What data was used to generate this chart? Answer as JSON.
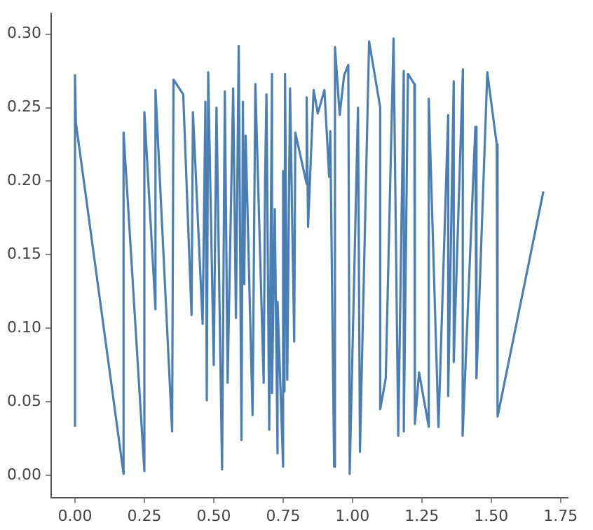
{
  "chart_data": {
    "type": "line",
    "xlim": [
      -0.086,
      1.776
    ],
    "ylim": [
      -0.015,
      0.314
    ],
    "xticks": [
      {
        "value": 0,
        "label": "0.00"
      },
      {
        "value": 0.25,
        "label": "0.25"
      },
      {
        "value": 0.5,
        "label": "0.50"
      },
      {
        "value": 0.75,
        "label": "0.75"
      },
      {
        "value": 1,
        "label": "1.00"
      },
      {
        "value": 1.25,
        "label": "1.25"
      },
      {
        "value": 1.5,
        "label": "1.50"
      },
      {
        "value": 1.75,
        "label": "1.75"
      }
    ],
    "yticks": [
      {
        "value": 0,
        "label": "0.00"
      },
      {
        "value": 0.05,
        "label": "0.05"
      },
      {
        "value": 0.1,
        "label": "0.10"
      },
      {
        "value": 0.15,
        "label": "0.15"
      },
      {
        "value": 0.2,
        "label": "0.20"
      },
      {
        "value": 0.25,
        "label": "0.25"
      },
      {
        "value": 0.3,
        "label": "0.30"
      }
    ],
    "grid": false,
    "legend": false,
    "marker": "none",
    "line_style": "solid",
    "series": [
      {
        "color": "#4a7fb5",
        "x": [
          0,
          0,
          0.003,
          0.175,
          0.175,
          0.25,
          0.25,
          0.29,
          0.29,
          0.35,
          0.355,
          0.39,
          0.42,
          0.425,
          0.46,
          0.47,
          0.475,
          0.48,
          0.5,
          0.51,
          0.53,
          0.54,
          0.55,
          0.57,
          0.58,
          0.59,
          0.6,
          0.605,
          0.61,
          0.615,
          0.64,
          0.65,
          0.68,
          0.685,
          0.69,
          0.7,
          0.71,
          0.71,
          0.72,
          0.73,
          0.73,
          0.75,
          0.75,
          0.755,
          0.757,
          0.765,
          0.775,
          0.79,
          0.794,
          0.835,
          0.835,
          0.84,
          0.86,
          0.875,
          0.899,
          0.916,
          0.92,
          0.934,
          0.937,
          0.954,
          0.97,
          0.985,
          0.99,
          1.02,
          1.027,
          1.06,
          1.1,
          1.1,
          1.12,
          1.148,
          1.165,
          1.185,
          1.185,
          1.2,
          1.223,
          1.225,
          1.24,
          1.275,
          1.275,
          1.31,
          1.345,
          1.345,
          1.365,
          1.365,
          1.398,
          1.397,
          1.443,
          1.447,
          1.486,
          1.52,
          1.523,
          1.688
        ],
        "values": [
          0.033,
          0.272,
          0.24,
          0.001,
          0.233,
          0.003,
          0.247,
          0.113,
          0.262,
          0.03,
          0.269,
          0.259,
          0.109,
          0.247,
          0.103,
          0.254,
          0.051,
          0.274,
          0.075,
          0.25,
          0.004,
          0.261,
          0.063,
          0.263,
          0.107,
          0.292,
          0.024,
          0.254,
          0.13,
          0.231,
          0.041,
          0.266,
          0.063,
          0.2,
          0.259,
          0.031,
          0.273,
          0.056,
          0.181,
          0.015,
          0.118,
          0.006,
          0.207,
          0.057,
          0.273,
          0.065,
          0.263,
          0.091,
          0.233,
          0.198,
          0.257,
          0.169,
          0.262,
          0.246,
          0.262,
          0.203,
          0.234,
          0.006,
          0.291,
          0.245,
          0.272,
          0.279,
          0.001,
          0.25,
          0.016,
          0.295,
          0.25,
          0.045,
          0.066,
          0.297,
          0.027,
          0.275,
          0.03,
          0.273,
          0.266,
          0.035,
          0.07,
          0.033,
          0.256,
          0.033,
          0.245,
          0.054,
          0.268,
          0.077,
          0.276,
          0.027,
          0.237,
          0.066,
          0.274,
          0.225,
          0.04,
          0.193
        ]
      }
    ]
  }
}
